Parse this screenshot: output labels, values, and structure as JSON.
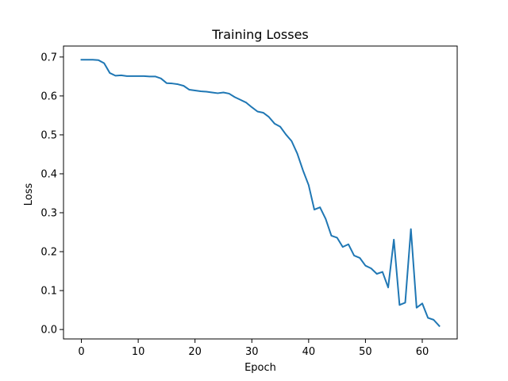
{
  "chart_data": {
    "type": "line",
    "title": "Training Losses",
    "xlabel": "Epoch",
    "ylabel": "Loss",
    "xlim": [
      -3.15,
      66.15
    ],
    "ylim": [
      -0.0242,
      0.7282
    ],
    "xticks": [
      0,
      10,
      20,
      30,
      40,
      50,
      60
    ],
    "yticks": [
      0.0,
      0.1,
      0.2,
      0.3,
      0.4,
      0.5,
      0.6,
      0.7
    ],
    "ytick_labels": [
      "0.0",
      "0.1",
      "0.2",
      "0.3",
      "0.4",
      "0.5",
      "0.6",
      "0.7"
    ],
    "grid": false,
    "series": [
      {
        "color": "#1f77b4",
        "x": [
          0,
          1,
          2,
          3,
          4,
          5,
          6,
          7,
          8,
          9,
          10,
          11,
          12,
          13,
          14,
          15,
          16,
          17,
          18,
          19,
          20,
          21,
          22,
          23,
          24,
          25,
          26,
          27,
          28,
          29,
          30,
          31,
          32,
          33,
          34,
          35,
          36,
          37,
          38,
          39,
          40,
          41,
          42,
          43,
          44,
          45,
          46,
          47,
          48,
          49,
          50,
          51,
          52,
          53,
          54,
          55,
          56,
          57,
          58,
          59,
          60,
          61,
          62,
          63
        ],
        "values": [
          0.693,
          0.693,
          0.693,
          0.692,
          0.684,
          0.659,
          0.652,
          0.653,
          0.651,
          0.651,
          0.651,
          0.651,
          0.65,
          0.65,
          0.645,
          0.633,
          0.632,
          0.63,
          0.626,
          0.616,
          0.614,
          0.612,
          0.611,
          0.609,
          0.607,
          0.609,
          0.606,
          0.597,
          0.59,
          0.583,
          0.571,
          0.56,
          0.557,
          0.546,
          0.529,
          0.521,
          0.501,
          0.484,
          0.452,
          0.409,
          0.371,
          0.308,
          0.314,
          0.284,
          0.241,
          0.236,
          0.212,
          0.219,
          0.19,
          0.184,
          0.164,
          0.157,
          0.143,
          0.148,
          0.108,
          0.231,
          0.063,
          0.069,
          0.258,
          0.056,
          0.067,
          0.03,
          0.025,
          0.009
        ]
      }
    ]
  }
}
